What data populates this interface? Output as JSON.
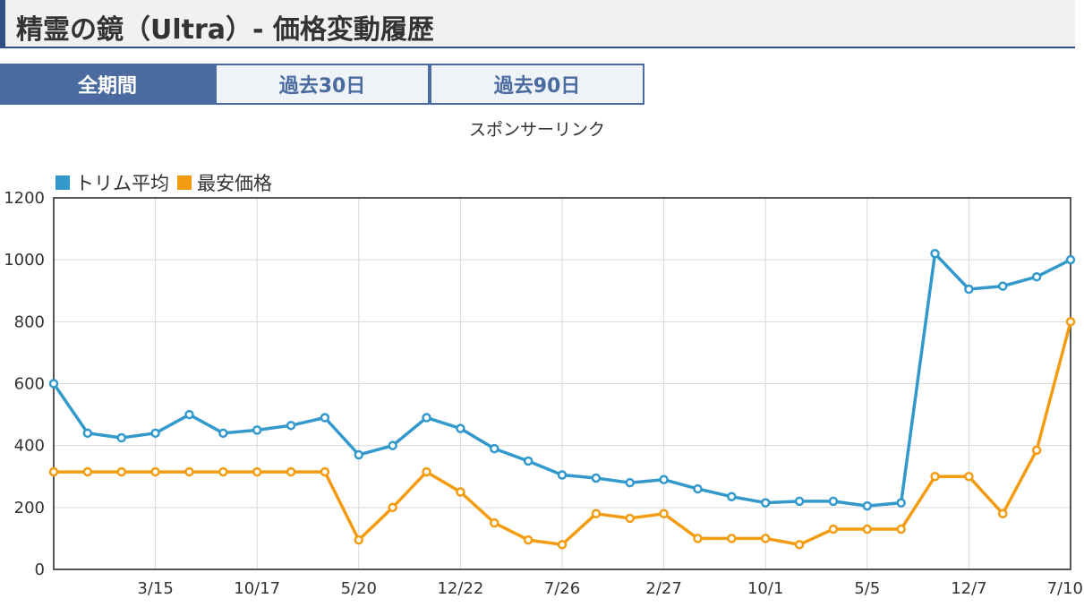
{
  "page": {
    "title": "精霊の鏡（Ultra）- 価格変動履歴",
    "tabs": [
      {
        "label": "全期間",
        "active": true
      },
      {
        "label": "過去30日",
        "active": false
      },
      {
        "label": "過去90日",
        "active": false
      }
    ],
    "sponsor_text": "スポンサーリンク",
    "accent_color": "#4a6aa0"
  },
  "chart_data": {
    "type": "line",
    "title": "",
    "xlabel": "",
    "ylabel": "",
    "ylim": [
      0,
      1200
    ],
    "yticks": [
      0,
      200,
      400,
      600,
      800,
      1000,
      1200
    ],
    "grid": true,
    "legend_position": "top-left",
    "x_tick_labels": [
      {
        "index": 3,
        "label": "3/15"
      },
      {
        "index": 6,
        "label": "10/17"
      },
      {
        "index": 9,
        "label": "5/20"
      },
      {
        "index": 12,
        "label": "12/22"
      },
      {
        "index": 15,
        "label": "7/26"
      },
      {
        "index": 18,
        "label": "2/27"
      },
      {
        "index": 21,
        "label": "10/1"
      },
      {
        "index": 24,
        "label": "5/5"
      },
      {
        "index": 27,
        "label": "12/7"
      },
      {
        "index": 30,
        "label": "7/10"
      }
    ],
    "num_points": 31,
    "series": [
      {
        "name": "トリム平均",
        "color": "#3399cc",
        "values": [
          600,
          440,
          425,
          440,
          500,
          440,
          450,
          465,
          490,
          370,
          400,
          490,
          455,
          390,
          350,
          305,
          295,
          280,
          290,
          260,
          235,
          215,
          220,
          220,
          205,
          215,
          1020,
          905,
          915,
          945,
          1000
        ]
      },
      {
        "name": "最安価格",
        "color": "#f39c12",
        "values": [
          315,
          315,
          315,
          315,
          315,
          315,
          315,
          315,
          315,
          95,
          200,
          315,
          250,
          150,
          95,
          80,
          180,
          165,
          180,
          100,
          100,
          100,
          80,
          130,
          130,
          130,
          300,
          300,
          180,
          385,
          800
        ]
      }
    ]
  }
}
